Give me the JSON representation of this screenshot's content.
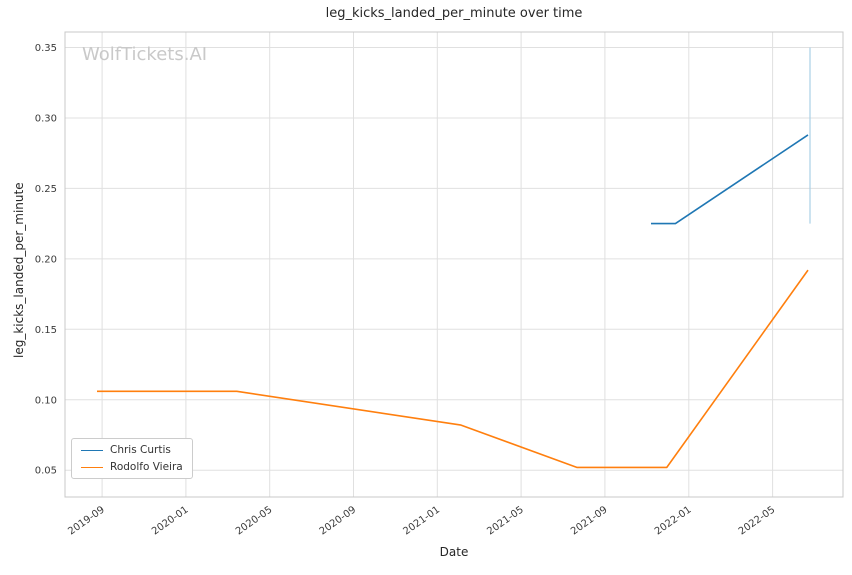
{
  "chart_data": {
    "type": "line",
    "title": "leg_kicks_landed_per_minute over time",
    "xlabel": "Date",
    "ylabel": "leg_kicks_landed_per_minute",
    "watermark": "WolfTickets.AI",
    "grid": true,
    "legend": {
      "position": "lower left",
      "entries": [
        "Chris Curtis",
        "Rodolfo Vieira"
      ]
    },
    "x_ticks": [
      "2019-09",
      "2020-01",
      "2020-05",
      "2020-09",
      "2021-01",
      "2021-05",
      "2021-09",
      "2022-01",
      "2022-05"
    ],
    "y_ticks": [
      0.05,
      0.1,
      0.15,
      0.2,
      0.25,
      0.3,
      0.35
    ],
    "xlim": [
      "2019-07-08",
      "2022-08-12"
    ],
    "ylim": [
      0.031,
      0.361
    ],
    "colors": {
      "grid": "#e0e0e0",
      "border": "#c8c8c8",
      "text": "#262626"
    },
    "series": [
      {
        "name": "Chris Curtis",
        "color": "#1f77b4",
        "points": [
          {
            "date": "2021-11-07",
            "value": 0.225
          },
          {
            "date": "2021-12-12",
            "value": 0.225
          },
          {
            "date": "2022-06-22",
            "value": 0.288
          }
        ]
      },
      {
        "name": "Rodolfo Vieira",
        "color": "#ff7f0e",
        "points": [
          {
            "date": "2019-08-24",
            "value": 0.106
          },
          {
            "date": "2020-03-14",
            "value": 0.106
          },
          {
            "date": "2021-02-05",
            "value": 0.082
          },
          {
            "date": "2021-07-21",
            "value": 0.052
          },
          {
            "date": "2021-11-30",
            "value": 0.052
          },
          {
            "date": "2022-06-22",
            "value": 0.192
          }
        ]
      }
    ],
    "annotations": [
      {
        "type": "vline",
        "date": "2022-06-25",
        "y_from": 0.225,
        "y_to": 0.35,
        "color": "#abd0e6"
      }
    ]
  }
}
